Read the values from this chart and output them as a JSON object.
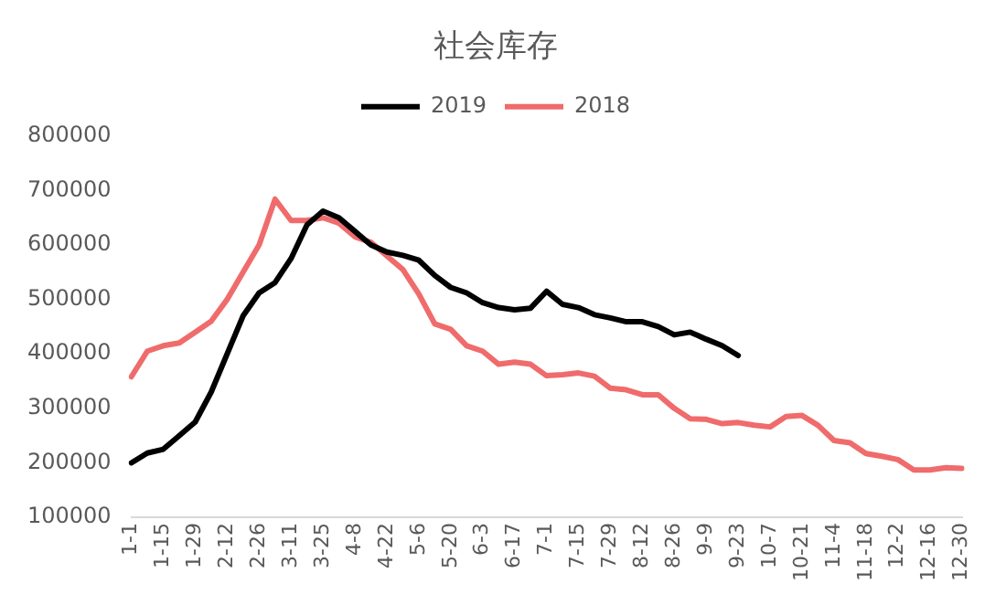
{
  "chart_data": {
    "type": "line",
    "title": "社会库存",
    "categories": [
      "1-1",
      null,
      "1-15",
      null,
      "1-29",
      null,
      "2-12",
      null,
      "2-26",
      null,
      "3-11",
      null,
      "3-25",
      null,
      "4-8",
      null,
      "4-22",
      null,
      "5-6",
      null,
      "5-20",
      null,
      "6-3",
      null,
      "6-17",
      null,
      "7-1",
      null,
      "7-15",
      null,
      "7-29",
      null,
      "8-12",
      null,
      "8-26",
      null,
      "9-9",
      null,
      "9-23",
      null,
      "10-7",
      null,
      "10-21",
      null,
      "11-4",
      null,
      "11-18",
      null,
      "12-2",
      null,
      "12-16",
      null,
      "12-30"
    ],
    "series": [
      {
        "name": "2019",
        "color": "#000000",
        "values": [
          200000,
          218000,
          225000,
          250000,
          275000,
          330000,
          400000,
          470000,
          512000,
          531000,
          575000,
          637000,
          662000,
          650000,
          625000,
          600000,
          587000,
          581000,
          572000,
          544000,
          522000,
          512000,
          494000,
          485000,
          481000,
          484000,
          515000,
          491000,
          485000,
          472000,
          466000,
          459000,
          459000,
          450000,
          435000,
          440000,
          427000,
          415000,
          397000,
          null,
          null,
          null,
          null,
          null,
          null,
          null,
          null,
          null,
          null,
          null,
          null,
          null,
          null
        ]
      },
      {
        "name": "2018",
        "color": "#f06b6b",
        "values": [
          358000,
          405000,
          415000,
          420000,
          440000,
          460000,
          500000,
          550000,
          600000,
          684000,
          645000,
          645000,
          650000,
          640000,
          615000,
          605000,
          580000,
          555000,
          510000,
          455000,
          445000,
          415000,
          405000,
          381000,
          385000,
          381000,
          360000,
          362000,
          365000,
          359000,
          337000,
          334000,
          325000,
          325000,
          300000,
          281000,
          280000,
          272000,
          274000,
          269000,
          266000,
          285000,
          287000,
          269000,
          241000,
          237000,
          217000,
          212000,
          206000,
          187000,
          187000,
          191000,
          190000
        ]
      }
    ],
    "ylim": [
      100000,
      800000
    ],
    "yticks": [
      100000,
      200000,
      300000,
      400000,
      500000,
      600000,
      700000,
      800000
    ],
    "grid": false,
    "legend": "top",
    "marker": "none",
    "line_style": "solid"
  }
}
